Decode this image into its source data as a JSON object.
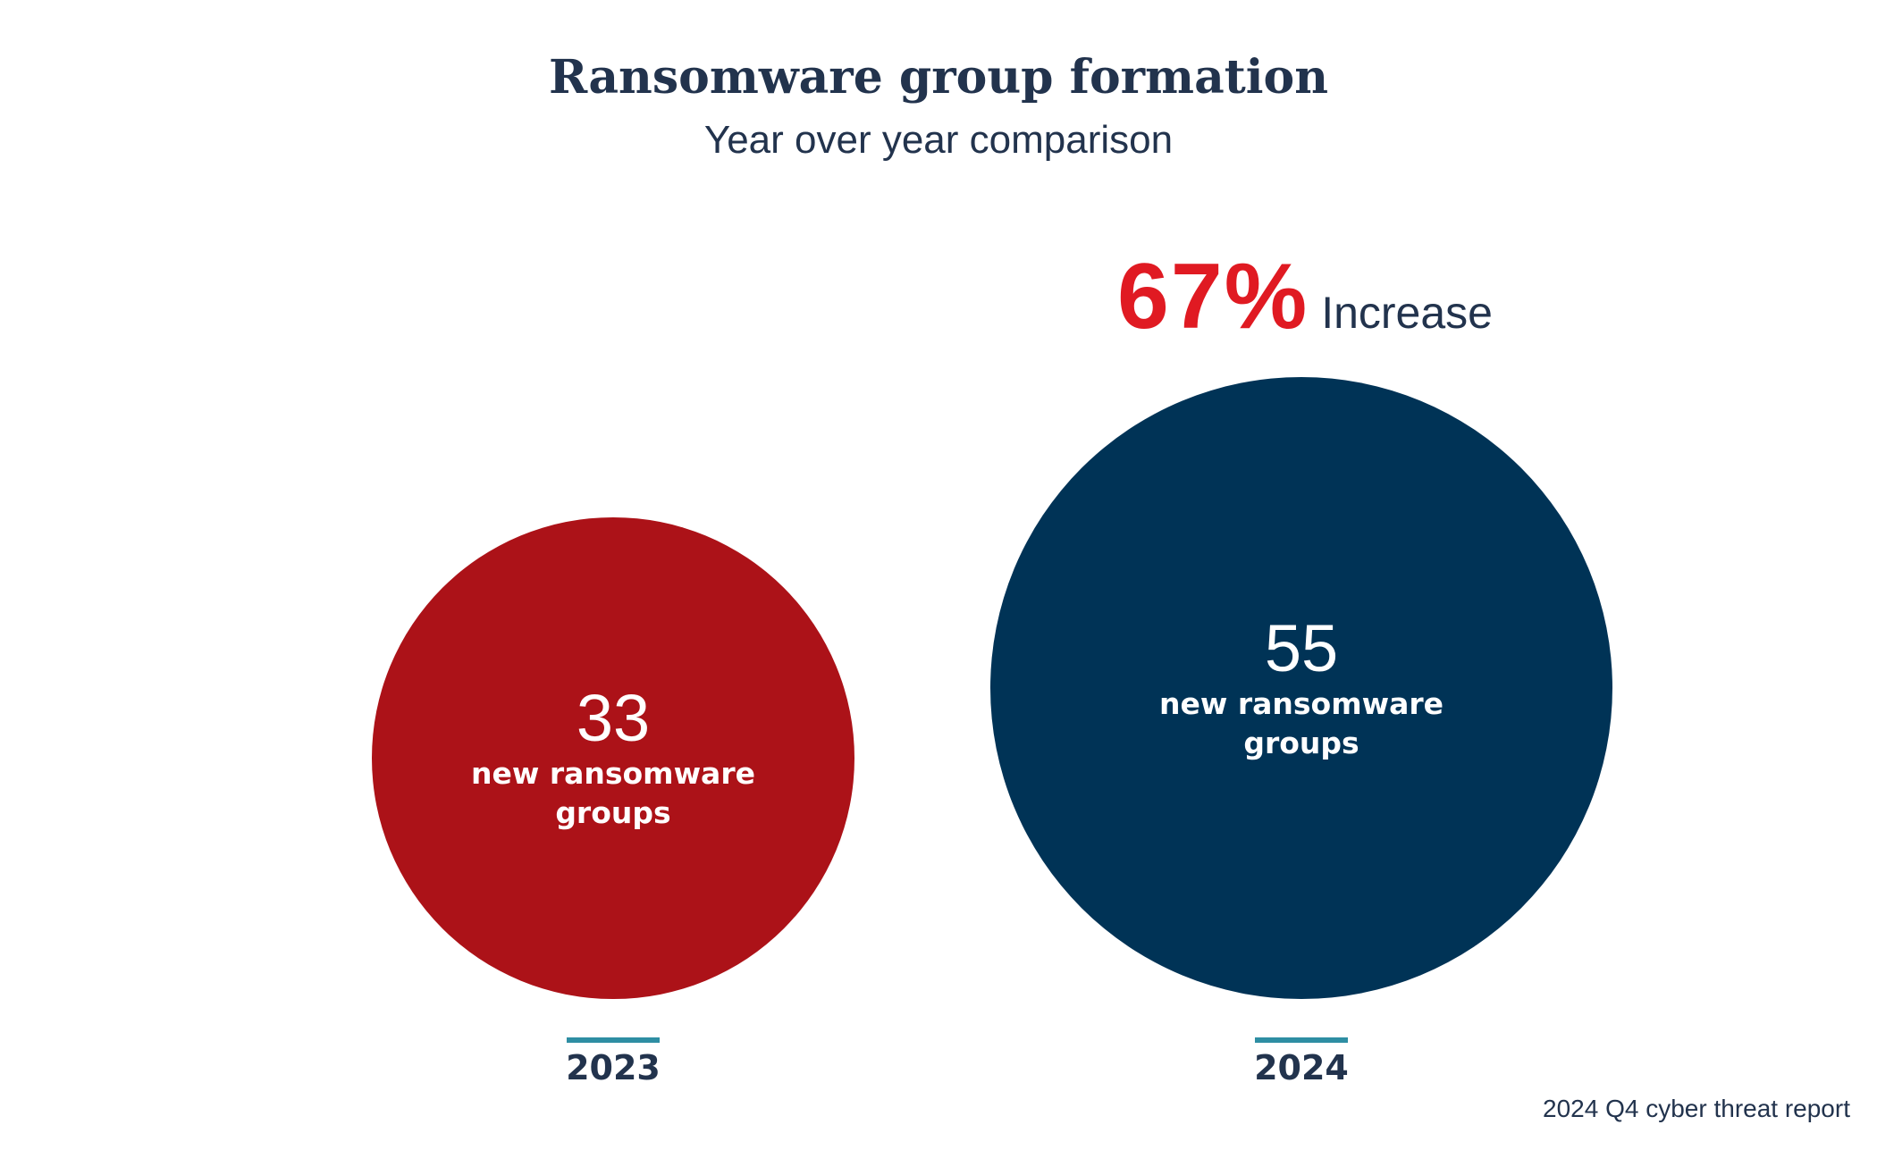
{
  "colors": {
    "red": "#ac1218",
    "navy": "#003356",
    "accent_red": "#e01a22",
    "teal": "#2e8ea3",
    "text": "#22334d"
  },
  "chart_data": {
    "type": "bubble",
    "title": "Ransomware group formation",
    "subtitle": "Year over year comparison",
    "categories": [
      "2023",
      "2024"
    ],
    "values": [
      33,
      55
    ],
    "value_label": "new ransomware groups",
    "annotation": {
      "value": "67%",
      "label": "Increase"
    },
    "source": "2024 Q4 cyber threat report"
  }
}
